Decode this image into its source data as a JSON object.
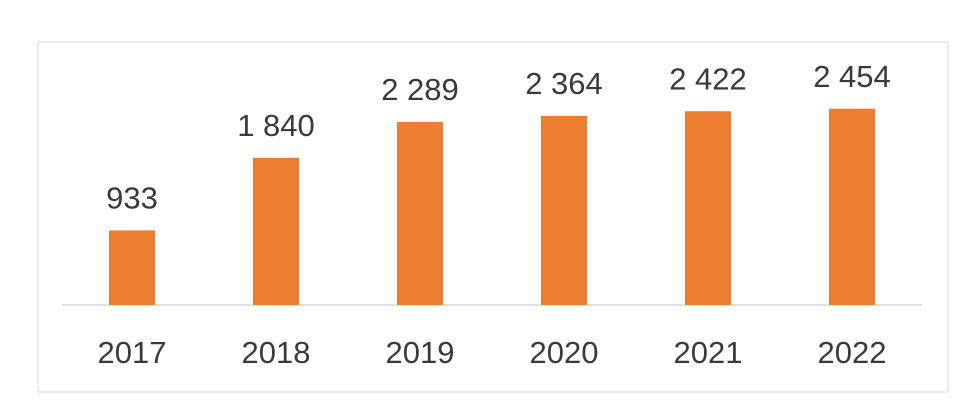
{
  "chart_data": {
    "type": "bar",
    "categories": [
      "2017",
      "2018",
      "2019",
      "2020",
      "2021",
      "2022"
    ],
    "values": [
      933,
      1840,
      2289,
      2364,
      2422,
      2454
    ],
    "value_labels": [
      "933",
      "1 840",
      "2 289",
      "2 364",
      "2 422",
      "2 454"
    ],
    "color": "#ed7d31",
    "ylim": [
      0,
      3000
    ]
  }
}
